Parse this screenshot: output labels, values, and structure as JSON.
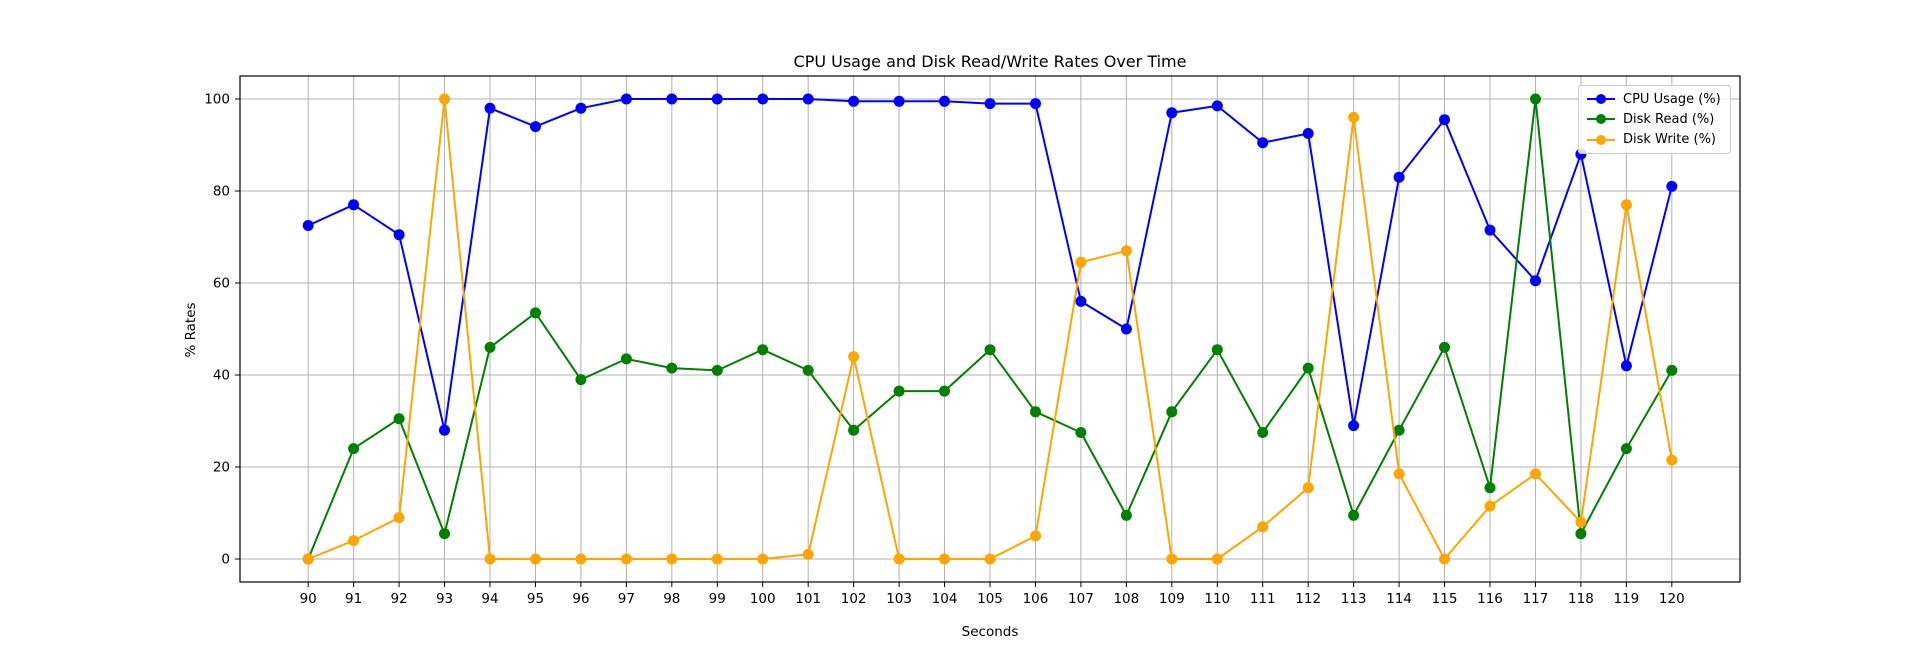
{
  "figure": {
    "background": "#ffffff"
  },
  "chart_data": {
    "type": "line",
    "title": "CPU Usage and Disk Read/Write Rates Over Time",
    "xlabel": "Seconds",
    "ylabel": "% Rates",
    "grid": true,
    "legend_position": "upper right",
    "xlim": [
      88.5,
      121.5
    ],
    "ylim": [
      -5,
      105
    ],
    "xticks": [
      90,
      91,
      92,
      93,
      94,
      95,
      96,
      97,
      98,
      99,
      100,
      101,
      102,
      103,
      104,
      105,
      106,
      107,
      108,
      109,
      110,
      111,
      112,
      113,
      114,
      115,
      116,
      117,
      118,
      119,
      120
    ],
    "yticks": [
      0,
      20,
      40,
      60,
      80,
      100
    ],
    "x": [
      90,
      91,
      92,
      93,
      94,
      95,
      96,
      97,
      98,
      99,
      100,
      101,
      102,
      103,
      104,
      105,
      106,
      107,
      108,
      109,
      110,
      111,
      112,
      113,
      114,
      115,
      116,
      117,
      118,
      119,
      120
    ],
    "series": [
      {
        "name": "CPU Usage (%)",
        "color": "#0000ff",
        "values": [
          72.5,
          77,
          70.5,
          28,
          98,
          94,
          98,
          100,
          100,
          100,
          100,
          100,
          99.5,
          99.5,
          99.5,
          99,
          99,
          56,
          50,
          97,
          98.5,
          90.5,
          92.5,
          29,
          83,
          95.5,
          71.5,
          60.5,
          88,
          42,
          81
        ]
      },
      {
        "name": "Disk Read (%)",
        "color": "#008000",
        "values": [
          0,
          24,
          30.5,
          5.5,
          46,
          53.5,
          39,
          43.5,
          41.5,
          41,
          45.5,
          41,
          28,
          36.5,
          36.5,
          45.5,
          32,
          27.5,
          9.5,
          32,
          45.5,
          27.5,
          41.5,
          9.5,
          28,
          46,
          15.5,
          100,
          5.5,
          24,
          41
        ]
      },
      {
        "name": "Disk Write (%)",
        "color": "#ffa500",
        "values": [
          0,
          4,
          9,
          100,
          0,
          0,
          0,
          0,
          0,
          0,
          0,
          1,
          44,
          0,
          0,
          0,
          5,
          64.5,
          67,
          0,
          0,
          7,
          15.5,
          96,
          18.5,
          0,
          11.5,
          18.5,
          8,
          77,
          21.5
        ]
      }
    ],
    "axis_color": "#000000",
    "grid_color": "#b0b0b0"
  }
}
